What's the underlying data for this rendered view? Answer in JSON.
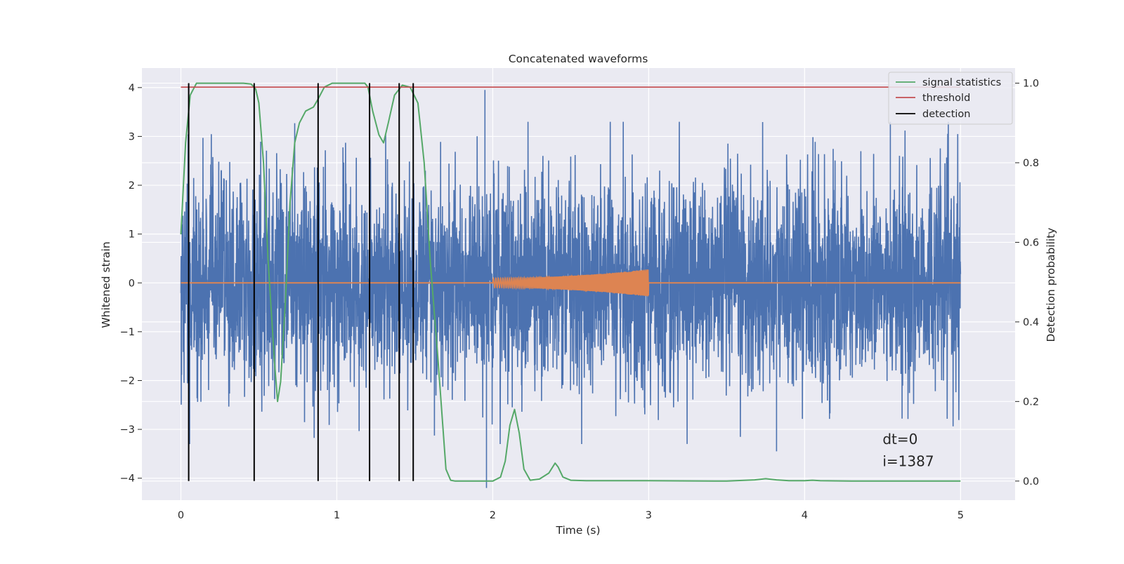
{
  "chart_data": {
    "type": "line",
    "title": "Concatenated waveforms",
    "xlabel": "Time (s)",
    "ylabel": "Whitened strain",
    "y2label": "Detection probability",
    "xlim": [
      -0.25,
      5.35
    ],
    "ylim": [
      -4.45,
      4.4
    ],
    "y2lim": [
      -0.048,
      1.038
    ],
    "xticks": [
      0,
      1,
      2,
      3,
      4,
      5
    ],
    "xtick_labels": [
      "0",
      "1",
      "2",
      "3",
      "4",
      "5"
    ],
    "yticks": [
      4,
      3,
      2,
      1,
      0,
      -1,
      -2,
      -3,
      -4
    ],
    "ytick_labels": [
      "4",
      "3",
      "2",
      "1",
      "0",
      "−1",
      "−2",
      "−3",
      "−4"
    ],
    "y2ticks": [
      1.0,
      0.8,
      0.6,
      0.4,
      0.2,
      0.0
    ],
    "y2tick_labels": [
      "1.0",
      "0.8",
      "0.6",
      "0.4",
      "0.2",
      "0.0"
    ],
    "grid": true,
    "legend_position": "top-right",
    "legend": [
      {
        "label": "signal statistics",
        "color": "#55a868"
      },
      {
        "label": "threshold",
        "color": "#c44e52"
      },
      {
        "label": "detection",
        "color": "#000000"
      }
    ],
    "series": [
      {
        "name": "strain",
        "color": "#4c72b0",
        "axis": "left",
        "x_range": [
          0,
          5
        ],
        "noise_std": 1.05,
        "notable_spikes": [
          {
            "x": 1.95,
            "y": 3.95
          },
          {
            "x": 1.96,
            "y": -4.2
          },
          {
            "x": 3.82,
            "y": -3.45
          },
          {
            "x": 4.55,
            "y": 3.3
          }
        ]
      },
      {
        "name": "waveform",
        "color": "#dd8452",
        "axis": "left",
        "baseline_x": [
          0,
          5
        ],
        "baseline_y": 0,
        "chirp": {
          "t_start": 2.0,
          "t_end": 3.0,
          "amp_start": 0.1,
          "amp_end": 0.28
        }
      },
      {
        "name": "signal statistics",
        "color": "#55a868",
        "axis": "right",
        "x": [
          0.0,
          0.03,
          0.06,
          0.1,
          0.2,
          0.4,
          0.45,
          0.48,
          0.5,
          0.53,
          0.56,
          0.6,
          0.62,
          0.64,
          0.67,
          0.7,
          0.73,
          0.76,
          0.8,
          0.85,
          0.88,
          0.92,
          0.97,
          1.05,
          1.18,
          1.2,
          1.23,
          1.27,
          1.3,
          1.33,
          1.37,
          1.42,
          1.47,
          1.52,
          1.56,
          1.6,
          1.65,
          1.7,
          1.73,
          1.76,
          1.8,
          1.9,
          2.0,
          2.05,
          2.08,
          2.11,
          2.14,
          2.17,
          2.2,
          2.24,
          2.3,
          2.36,
          2.4,
          2.42,
          2.45,
          2.5,
          2.6,
          3.0,
          3.5,
          3.68,
          3.75,
          3.82,
          3.9,
          4.0,
          4.05,
          4.1,
          4.3,
          4.6,
          5.0
        ],
        "y": [
          0.62,
          0.85,
          0.97,
          1.0,
          1.0,
          1.0,
          0.998,
          0.985,
          0.95,
          0.8,
          0.55,
          0.3,
          0.2,
          0.25,
          0.45,
          0.7,
          0.85,
          0.9,
          0.93,
          0.94,
          0.96,
          0.99,
          1.0,
          1.0,
          1.0,
          0.99,
          0.93,
          0.87,
          0.85,
          0.9,
          0.97,
          0.995,
          0.99,
          0.95,
          0.8,
          0.55,
          0.3,
          0.03,
          0.002,
          0.0,
          0.0,
          0.0,
          0.0,
          0.01,
          0.05,
          0.14,
          0.18,
          0.12,
          0.03,
          0.002,
          0.005,
          0.02,
          0.045,
          0.035,
          0.01,
          0.002,
          0.001,
          0.001,
          0.0,
          0.003,
          0.006,
          0.003,
          0.001,
          0.001,
          0.002,
          0.001,
          0.0,
          0.0,
          0.0
        ]
      },
      {
        "name": "threshold",
        "color": "#c44e52",
        "axis": "right",
        "x": [
          0,
          5
        ],
        "y": [
          0.99,
          0.99
        ]
      }
    ],
    "detections": [
      0.05,
      0.47,
      0.88,
      1.21,
      1.4,
      1.49
    ],
    "detection_y2_range": [
      0.0,
      1.0
    ],
    "annotations": [
      {
        "text": "dt=0",
        "x": 4.5,
        "y": -3.3
      },
      {
        "text": "i=1387",
        "x": 4.5,
        "y": -3.75
      }
    ]
  }
}
